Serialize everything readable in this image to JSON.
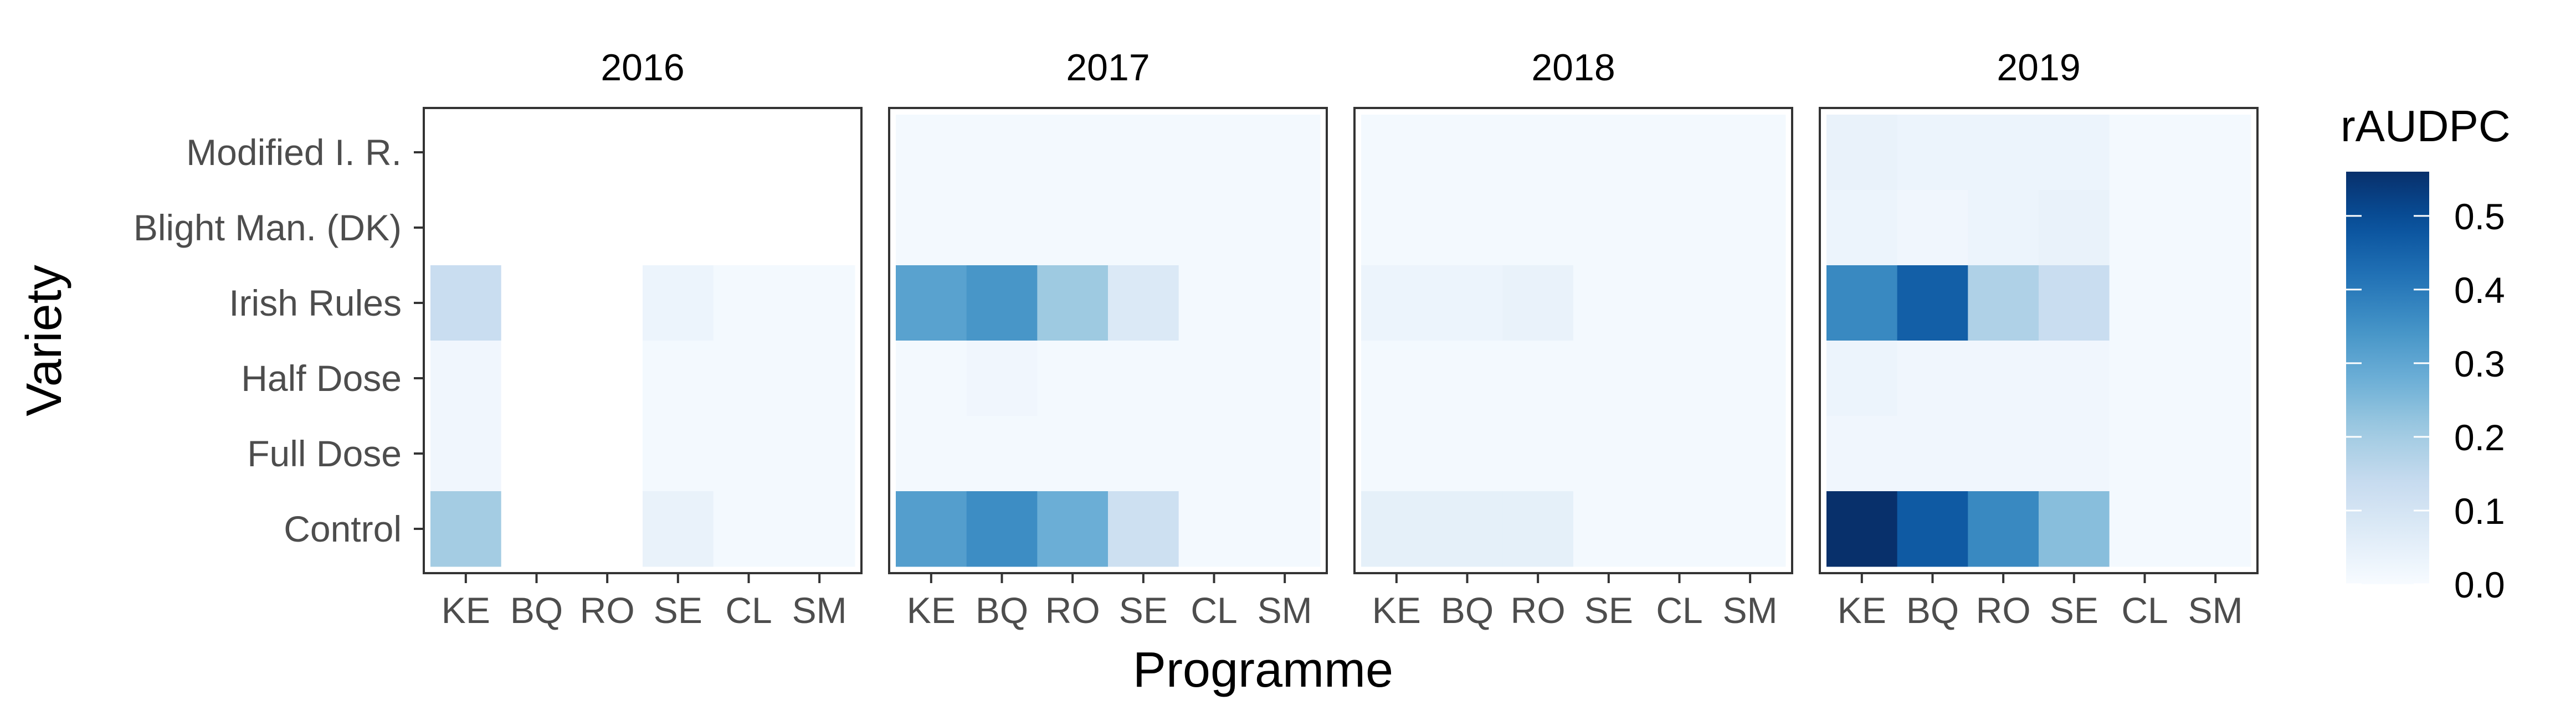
{
  "chart_data": {
    "type": "heatmap",
    "xlabel": "Programme",
    "ylabel": "Variety",
    "facets": [
      "2016",
      "2017",
      "2018",
      "2019"
    ],
    "x_categories": [
      "KE",
      "BQ",
      "RO",
      "SE",
      "CL",
      "SM"
    ],
    "y_categories": [
      "Modified I. R.",
      "Blight Man. (DK)",
      "Irish Rules",
      "Half Dose",
      "Full Dose",
      "Control"
    ],
    "values": {
      "2016": [
        [
          null,
          null,
          null,
          null,
          null,
          null
        ],
        [
          null,
          null,
          null,
          null,
          null,
          null
        ],
        [
          0.13,
          null,
          null,
          0.03,
          0.01,
          0.01
        ],
        [
          0.02,
          null,
          null,
          0.01,
          0.01,
          0.01
        ],
        [
          0.02,
          null,
          null,
          0.01,
          0.01,
          0.01
        ],
        [
          0.2,
          null,
          null,
          0.04,
          0.01,
          0.01
        ]
      ],
      "2017": [
        [
          0.01,
          0.01,
          0.01,
          0.01,
          0.01,
          0.01
        ],
        [
          0.01,
          0.01,
          0.01,
          0.01,
          0.01,
          0.01
        ],
        [
          0.31,
          0.34,
          0.21,
          0.08,
          0.01,
          0.01
        ],
        [
          0.01,
          0.02,
          0.01,
          0.01,
          0.01,
          0.01
        ],
        [
          0.01,
          0.01,
          0.01,
          0.01,
          0.01,
          0.01
        ],
        [
          0.32,
          0.36,
          0.28,
          0.12,
          0.01,
          0.01
        ]
      ],
      "2018": [
        [
          0.01,
          0.01,
          0.01,
          0.01,
          0.01,
          0.01
        ],
        [
          0.01,
          0.01,
          0.01,
          0.01,
          0.01,
          0.01
        ],
        [
          0.03,
          0.03,
          0.04,
          0.01,
          0.01,
          0.01
        ],
        [
          0.01,
          0.01,
          0.01,
          0.01,
          0.01,
          0.01
        ],
        [
          0.01,
          0.01,
          0.01,
          0.01,
          0.01,
          0.01
        ],
        [
          0.05,
          0.05,
          0.05,
          0.01,
          0.01,
          0.01
        ]
      ],
      "2019": [
        [
          0.04,
          0.03,
          0.03,
          0.03,
          0.01,
          0.01
        ],
        [
          0.03,
          0.02,
          0.03,
          0.04,
          0.01,
          0.01
        ],
        [
          0.37,
          0.46,
          0.18,
          0.13,
          0.01,
          0.01
        ],
        [
          0.03,
          0.02,
          0.02,
          0.02,
          0.01,
          0.01
        ],
        [
          0.02,
          0.02,
          0.02,
          0.02,
          0.01,
          0.01
        ],
        [
          0.56,
          0.47,
          0.37,
          0.24,
          0.01,
          0.01
        ]
      ]
    },
    "legend": {
      "title": "rAUDPC",
      "ticks": [
        "0.0",
        "0.1",
        "0.2",
        "0.3",
        "0.4",
        "0.5"
      ],
      "tick_values": [
        0,
        0.1,
        0.2,
        0.3,
        0.4,
        0.5
      ],
      "min": 0,
      "max": 0.56,
      "position": "right"
    },
    "colors": {
      "low": "#f7fbff",
      "stops": [
        "#f7fbff",
        "#deebf7",
        "#c6dbef",
        "#9ecae1",
        "#6baed6",
        "#4292c6",
        "#2171b5",
        "#08519c",
        "#08306b"
      ],
      "panel_border": "#333333",
      "strip_bg": "#ffffff",
      "missing": "#ffffff"
    }
  }
}
